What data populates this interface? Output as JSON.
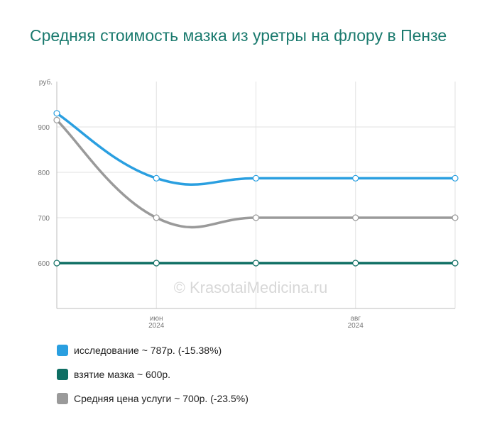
{
  "title": "Средняя стоимость мазка из уретры на флору в Пензе",
  "watermark": "© KrasotaiMedicina.ru",
  "chart_data": {
    "type": "line",
    "y_unit_label": "руб.",
    "yticks": [
      600,
      700,
      800,
      900
    ],
    "ylim": [
      500,
      1000
    ],
    "x_tick_labels": [
      {
        "month": "июн",
        "year": "2024",
        "index": 1
      },
      {
        "month": "авг",
        "year": "2024",
        "index": 3
      }
    ],
    "points_count": 5,
    "grid": true,
    "legend_position": "bottom",
    "series": [
      {
        "name": "исследование",
        "color": "#2a9fe0",
        "values": [
          930,
          787,
          787,
          787,
          787
        ]
      },
      {
        "name": "взятие мазка",
        "color": "#0e6e63",
        "values": [
          600,
          600,
          600,
          600,
          600
        ]
      },
      {
        "name": "Средняя цена услуги",
        "color": "#9a9a9a",
        "values": [
          915,
          700,
          700,
          700,
          700
        ]
      }
    ]
  },
  "legend": [
    {
      "text": "исследование ~ 787р. (-15.38%)",
      "color": "#2a9fe0"
    },
    {
      "text": "взятие мазка ~ 600р.",
      "color": "#0e6e63"
    },
    {
      "text": "Средняя цена услуги ~ 700р. (-23.5%)",
      "color": "#9a9a9a"
    }
  ]
}
